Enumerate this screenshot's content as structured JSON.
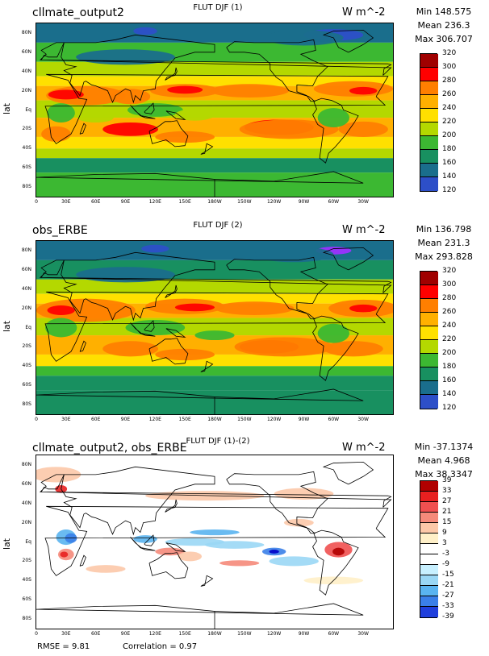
{
  "panels": [
    {
      "case_label": "cllmate_output2",
      "title": "FLUT DJF (1)",
      "units": "W m^-2",
      "stats": [
        "Min 148.575",
        "Mean 236.3",
        "Max 306.707"
      ],
      "ylabel": "lat",
      "palette": "abs",
      "colorbar_labels": [
        "320",
        "300",
        "280",
        "260",
        "240",
        "220",
        "200",
        "180",
        "160",
        "140",
        "120"
      ]
    },
    {
      "case_label": "obs_ERBE",
      "title": "FLUT DJF (2)",
      "units": "W m^-2",
      "stats": [
        "Min 136.798",
        "Mean 231.3",
        "Max 293.828"
      ],
      "ylabel": "lat",
      "palette": "abs",
      "colorbar_labels": [
        "320",
        "300",
        "280",
        "260",
        "240",
        "220",
        "200",
        "180",
        "160",
        "140",
        "120"
      ]
    },
    {
      "case_label": "cllmate_output2, obs_ERBE",
      "title": "FLUT DJF (1)-(2)",
      "units": "W m^-2",
      "stats": [
        "Min -37.1374",
        "Mean 4.968",
        "Max 38.3347"
      ],
      "ylabel": "lat",
      "palette": "diff",
      "colorbar_labels": [
        "39",
        "33",
        "27",
        "21",
        "15",
        "9",
        "3",
        "-3",
        "-9",
        "-15",
        "-21",
        "-27",
        "-33",
        "-39"
      ]
    }
  ],
  "lat_ticks": [
    "80N",
    "60N",
    "40N",
    "20N",
    "Eq",
    "20S",
    "40S",
    "60S",
    "80S"
  ],
  "lon_ticks": [
    "0",
    "30E",
    "60E",
    "90E",
    "120E",
    "150E",
    "180W",
    "150W",
    "120W",
    "90W",
    "60W",
    "30W"
  ],
  "footer": {
    "rmse": "RMSE = 9.81",
    "correlation": "Correlation = 0.97"
  },
  "colors": {
    "abs": [
      "#a00000",
      "#ff0000",
      "#ff7f00",
      "#ffb000",
      "#ffe000",
      "#b4d800",
      "#3cb832",
      "#189060",
      "#1a6e8c",
      "#2d4fc8",
      "#9b30ff"
    ],
    "diff": [
      "#b00000",
      "#e82020",
      "#f05050",
      "#f58a7a",
      "#fcc8a8",
      "#fff0c8",
      "#ffffff",
      "#ffffff",
      "#c8f0ff",
      "#9ad7f5",
      "#5ab4f0",
      "#3a7fe8",
      "#1f3fdc",
      "#0000c8"
    ]
  },
  "chart_data": [
    {
      "type": "heatmap",
      "title": "FLUT DJF (1)",
      "subtitle": "cllmate_output2",
      "units": "W m^-2",
      "ylabel": "lat",
      "x_range": [
        0,
        360
      ],
      "y_range": [
        -90,
        90
      ],
      "levels": [
        120,
        140,
        160,
        180,
        200,
        220,
        240,
        260,
        280,
        300,
        320
      ],
      "summary": {
        "min": 148.575,
        "mean": 236.3,
        "max": 306.707
      }
    },
    {
      "type": "heatmap",
      "title": "FLUT DJF (2)",
      "subtitle": "obs_ERBE",
      "units": "W m^-2",
      "ylabel": "lat",
      "x_range": [
        0,
        360
      ],
      "y_range": [
        -90,
        90
      ],
      "levels": [
        120,
        140,
        160,
        180,
        200,
        220,
        240,
        260,
        280,
        300,
        320
      ],
      "summary": {
        "min": 136.798,
        "mean": 231.3,
        "max": 293.828
      }
    },
    {
      "type": "heatmap",
      "title": "FLUT DJF (1)-(2)",
      "subtitle": "cllmate_output2, obs_ERBE",
      "units": "W m^-2",
      "ylabel": "lat",
      "x_range": [
        0,
        360
      ],
      "y_range": [
        -90,
        90
      ],
      "levels": [
        -39,
        -33,
        -27,
        -21,
        -15,
        -9,
        -3,
        3,
        9,
        15,
        21,
        27,
        33,
        39
      ],
      "summary": {
        "min": -37.1374,
        "mean": 4.968,
        "max": 38.3347,
        "rmse": 9.81,
        "correlation": 0.97
      }
    }
  ]
}
